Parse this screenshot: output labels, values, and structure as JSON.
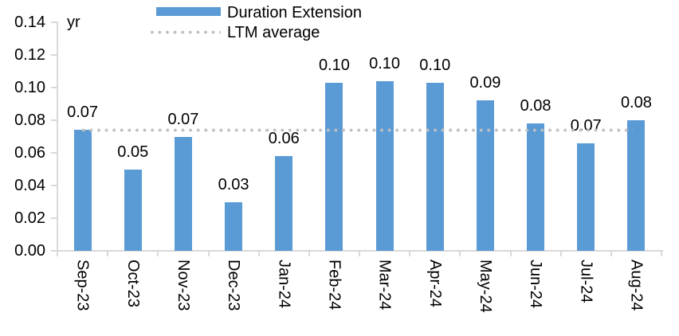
{
  "chart_data": {
    "type": "bar",
    "unit_label": "yr",
    "categories": [
      "Sep-23",
      "Oct-23",
      "Nov-23",
      "Dec-23",
      "Jan-24",
      "Feb-24",
      "Mar-24",
      "Apr-24",
      "May-24",
      "Jun-24",
      "Jul-24",
      "Aug-24"
    ],
    "series": [
      {
        "name": "Duration Extension",
        "type": "bar",
        "color": "#5B9BD5",
        "values": [
          0.074,
          0.05,
          0.07,
          0.03,
          0.058,
          0.103,
          0.104,
          0.103,
          0.092,
          0.078,
          0.066,
          0.08
        ],
        "data_labels": [
          "0.07",
          "0.05",
          "0.07",
          "0.03",
          "0.06",
          "0.10",
          "0.10",
          "0.10",
          "0.09",
          "0.08",
          "0.07",
          "0.08"
        ]
      },
      {
        "name": "LTM average",
        "type": "line",
        "line_style": "dotted",
        "color": "#BFBFBF",
        "value": 0.0738
      }
    ],
    "ylim": [
      0,
      0.14
    ],
    "ytick_step": 0.02,
    "ytick_labels": [
      "0.00",
      "0.02",
      "0.04",
      "0.06",
      "0.08",
      "0.10",
      "0.12",
      "0.14"
    ],
    "grid": false,
    "legend_position": "top"
  },
  "legend": {
    "items": [
      {
        "label": "Duration Extension",
        "swatch": "bar"
      },
      {
        "label": "LTM average",
        "swatch": "dotted-line"
      }
    ]
  },
  "colors": {
    "bar": "#5B9BD5",
    "dotted_line": "#BFBFBF",
    "axis": "#D9D9D9",
    "text": "#000000",
    "background": "#FFFFFF"
  }
}
